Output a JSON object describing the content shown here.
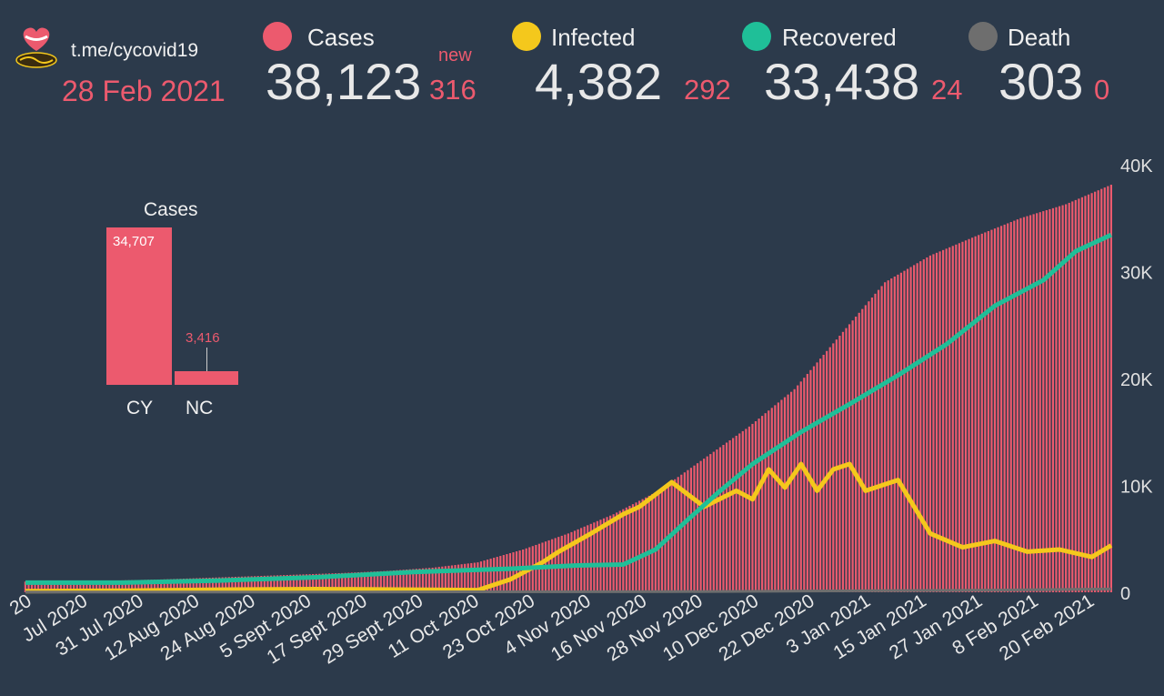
{
  "header": {
    "channel": "t.me/cycovid19",
    "date": "28 Feb 2021",
    "new_tag": "new"
  },
  "stats": [
    {
      "label": "Cases",
      "value": "38,123",
      "new": "316",
      "color": "#ec5a6e"
    },
    {
      "label": "Infected",
      "value": "4,382",
      "new": "292",
      "color": "#f4c81c"
    },
    {
      "label": "Recovered",
      "value": "33,438",
      "new": "24",
      "color": "#1fbf98"
    },
    {
      "label": "Death",
      "value": "303",
      "new": "0",
      "color": "#6e6e6e"
    }
  ],
  "mini_chart": {
    "title": "Cases",
    "bars": [
      {
        "category": "CY",
        "value": 34707,
        "label": "34,707"
      },
      {
        "category": "NC",
        "value": 3416,
        "label": "3,416"
      }
    ]
  },
  "colors": {
    "background": "#2c3a4b",
    "cases": "#ec5a6e",
    "infected": "#f4c81c",
    "recovered": "#1fbf98",
    "death": "#6e6e6e"
  },
  "chart_data": {
    "type": "bar",
    "ylim": [
      0,
      40000
    ],
    "y_ticks": [
      {
        "value": 0,
        "label": "0"
      },
      {
        "value": 10000,
        "label": "10K"
      },
      {
        "value": 20000,
        "label": "20K"
      },
      {
        "value": 30000,
        "label": "30K"
      },
      {
        "value": 40000,
        "label": "40K"
      }
    ],
    "x_tick_labels": [
      "20",
      "Jul 2020",
      "31 Jul 2020",
      "12 Aug 2020",
      "24 Aug 2020",
      "5 Sept 2020",
      "17 Sept 2020",
      "29 Sept 2020",
      "11 Oct 2020",
      "23 Oct 2020",
      "4 Nov 2020",
      "16 Nov 2020",
      "28 Nov 2020",
      "10 Dec 2020",
      "22 Dec 2020",
      "3 Jan 2021",
      "15 Jan 2021",
      "27 Jan 2021",
      "8 Feb 2021",
      "20 Feb 2021"
    ],
    "series": [
      {
        "name": "Cases",
        "style": "bars",
        "color": "#ec5a6e",
        "x": [
          0,
          14,
          28,
          42,
          56,
          70,
          84,
          98,
          112,
          126,
          140,
          154,
          168,
          182,
          196,
          210,
          224,
          238,
          252,
          266,
          280,
          294,
          308,
          322,
          336
        ],
        "values": [
          1000,
          1050,
          1100,
          1200,
          1350,
          1500,
          1650,
          1800,
          2000,
          2300,
          2800,
          4000,
          5500,
          7300,
          9500,
          12500,
          15500,
          19000,
          24000,
          29000,
          31500,
          33300,
          35000,
          36300,
          38123
        ]
      },
      {
        "name": "Infected",
        "style": "line",
        "color": "#f4c81c",
        "x": [
          0,
          30,
          60,
          90,
          120,
          140,
          150,
          160,
          165,
          175,
          185,
          190,
          200,
          210,
          220,
          225,
          230,
          235,
          240,
          245,
          250,
          255,
          260,
          270,
          280,
          290,
          300,
          310,
          320,
          330,
          336
        ],
        "values": [
          100,
          150,
          250,
          300,
          250,
          200,
          1200,
          2800,
          3800,
          5500,
          7300,
          8000,
          10300,
          8000,
          9500,
          8700,
          11500,
          9800,
          12000,
          9500,
          11500,
          12000,
          9500,
          10500,
          5500,
          4200,
          4800,
          3800,
          4000,
          3300,
          4382
        ]
      },
      {
        "name": "Recovered",
        "style": "line",
        "color": "#1fbf98",
        "x": [
          0,
          30,
          60,
          90,
          120,
          150,
          170,
          185,
          195,
          205,
          215,
          225,
          240,
          255,
          270,
          285,
          300,
          315,
          325,
          336
        ],
        "values": [
          900,
          900,
          1100,
          1400,
          1900,
          2200,
          2500,
          2600,
          4000,
          6800,
          9500,
          12000,
          15000,
          17600,
          20300,
          23200,
          26800,
          29200,
          31900,
          33438
        ]
      },
      {
        "name": "Death",
        "style": "line",
        "color": "#6e6e6e",
        "x": [
          0,
          100,
          200,
          300,
          336
        ],
        "values": [
          20,
          25,
          60,
          200,
          303
        ]
      }
    ]
  }
}
